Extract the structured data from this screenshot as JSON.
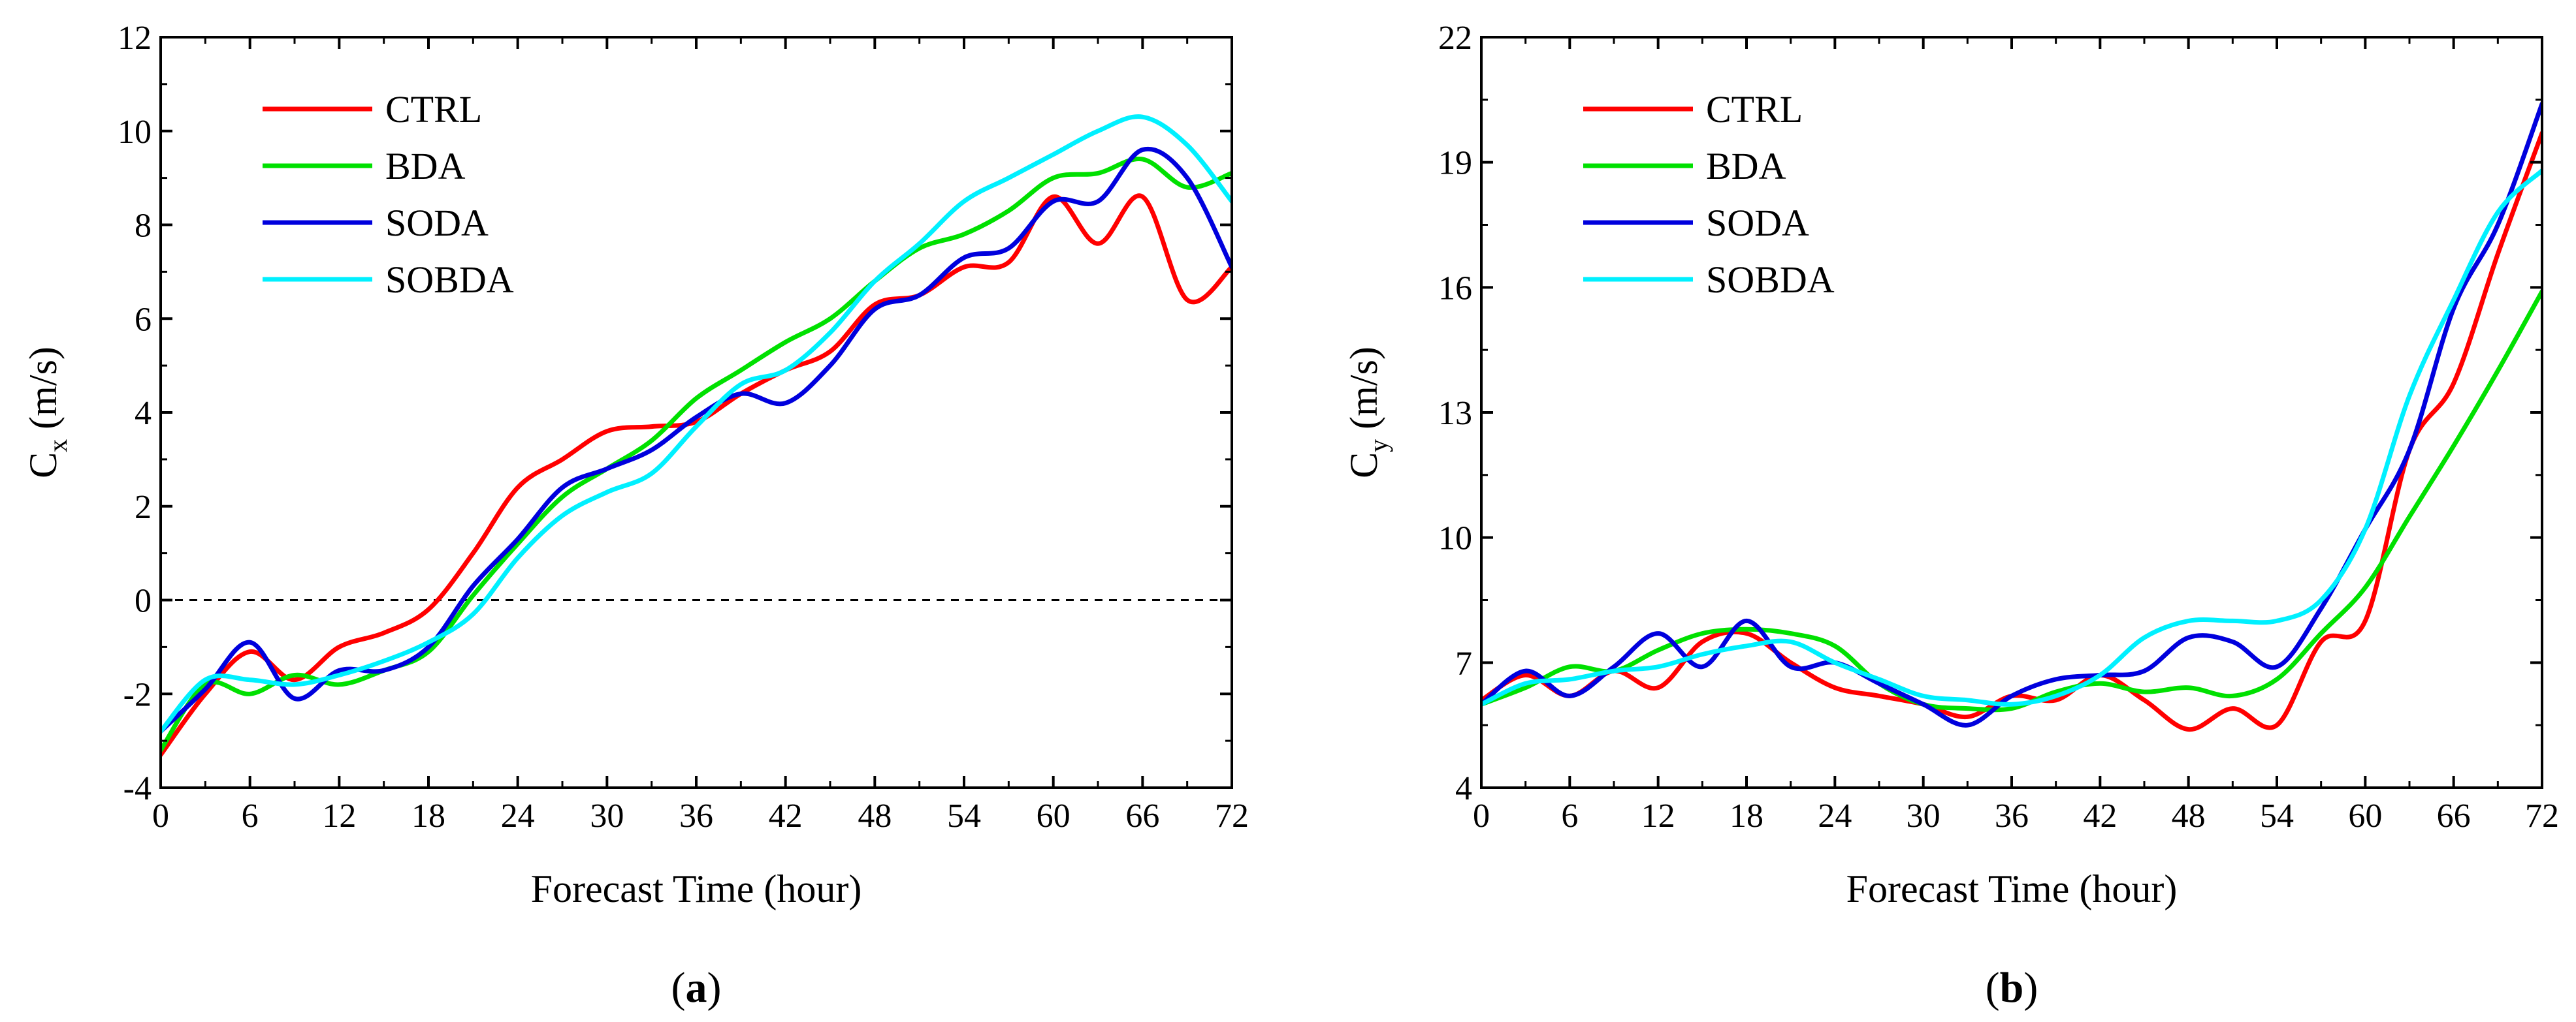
{
  "chart_data": [
    {
      "type": "line",
      "panel_label": "a",
      "xlabel": "Forecast Time (hour)",
      "ylabel_main": "C",
      "ylabel_sub": "x",
      "ylabel_unit": " (m/s)",
      "xlim": [
        0,
        72
      ],
      "ylim": [
        -4,
        12
      ],
      "x_ticks": [
        0,
        6,
        12,
        18,
        24,
        30,
        36,
        42,
        48,
        54,
        60,
        66,
        72
      ],
      "y_ticks": [
        -4,
        -2,
        0,
        2,
        4,
        6,
        8,
        10,
        12
      ],
      "reference_line": 0,
      "legend_position": "top-left",
      "grid": false,
      "series": [
        {
          "name": "CTRL",
          "color": "#ff0000",
          "x": [
            0,
            3,
            6,
            9,
            12,
            15,
            18,
            21,
            24,
            27,
            30,
            33,
            36,
            39,
            42,
            45,
            48,
            51,
            54,
            57,
            60,
            63,
            66,
            69,
            72
          ],
          "y": [
            -3.3,
            -2.0,
            -1.1,
            -1.7,
            -1.0,
            -0.7,
            -0.2,
            1.0,
            2.4,
            3.0,
            3.6,
            3.7,
            3.8,
            4.4,
            4.9,
            5.3,
            6.3,
            6.5,
            7.1,
            7.2,
            8.6,
            7.6,
            8.6,
            6.4,
            7.1
          ]
        },
        {
          "name": "BDA",
          "color": "#00e000",
          "x": [
            0,
            3,
            6,
            9,
            12,
            15,
            18,
            21,
            24,
            27,
            30,
            33,
            36,
            39,
            42,
            45,
            48,
            51,
            54,
            57,
            60,
            63,
            66,
            69,
            72
          ],
          "y": [
            -3.2,
            -1.8,
            -2.0,
            -1.6,
            -1.8,
            -1.5,
            -1.1,
            0.1,
            1.2,
            2.2,
            2.8,
            3.4,
            4.3,
            4.9,
            5.5,
            6.0,
            6.8,
            7.5,
            7.8,
            8.3,
            9.0,
            9.1,
            9.4,
            8.8,
            9.1
          ]
        },
        {
          "name": "SODA",
          "color": "#0000dd",
          "x": [
            0,
            3,
            6,
            9,
            12,
            15,
            18,
            21,
            24,
            27,
            30,
            33,
            36,
            39,
            42,
            45,
            48,
            51,
            54,
            57,
            60,
            63,
            66,
            69,
            72
          ],
          "y": [
            -2.8,
            -1.9,
            -0.9,
            -2.1,
            -1.5,
            -1.5,
            -1.0,
            0.3,
            1.3,
            2.4,
            2.8,
            3.2,
            3.9,
            4.4,
            4.2,
            5.0,
            6.2,
            6.5,
            7.3,
            7.5,
            8.5,
            8.5,
            9.6,
            9.0,
            7.1
          ]
        },
        {
          "name": "SOBDA",
          "color": "#00f0ff",
          "x": [
            0,
            3,
            6,
            9,
            12,
            15,
            18,
            21,
            24,
            27,
            30,
            33,
            36,
            39,
            42,
            45,
            48,
            51,
            54,
            57,
            60,
            63,
            66,
            69,
            72
          ],
          "y": [
            -2.8,
            -1.7,
            -1.7,
            -1.8,
            -1.6,
            -1.3,
            -0.9,
            -0.3,
            0.9,
            1.8,
            2.3,
            2.7,
            3.7,
            4.6,
            4.9,
            5.7,
            6.8,
            7.6,
            8.5,
            9.0,
            9.5,
            10.0,
            10.3,
            9.7,
            8.5
          ]
        }
      ]
    },
    {
      "type": "line",
      "panel_label": "b",
      "xlabel": "Forecast Time (hour)",
      "ylabel_main": "C",
      "ylabel_sub": "y",
      "ylabel_unit": " (m/s)",
      "xlim": [
        0,
        72
      ],
      "ylim": [
        4,
        22
      ],
      "x_ticks": [
        0,
        6,
        12,
        18,
        24,
        30,
        36,
        42,
        48,
        54,
        60,
        66,
        72
      ],
      "y_ticks": [
        4,
        7,
        10,
        13,
        16,
        19,
        22
      ],
      "legend_position": "top-left",
      "grid": false,
      "series": [
        {
          "name": "CTRL",
          "color": "#ff0000",
          "x": [
            0,
            3,
            6,
            9,
            12,
            15,
            18,
            21,
            24,
            27,
            30,
            33,
            36,
            39,
            42,
            45,
            48,
            51,
            54,
            57,
            60,
            63,
            66,
            69,
            72
          ],
          "y": [
            6.1,
            6.7,
            6.2,
            6.8,
            6.4,
            7.5,
            7.7,
            7.0,
            6.4,
            6.2,
            6.0,
            5.7,
            6.2,
            6.1,
            6.7,
            6.1,
            5.4,
            5.9,
            5.5,
            7.5,
            8.0,
            12.1,
            13.7,
            16.8,
            19.7
          ]
        },
        {
          "name": "BDA",
          "color": "#00e000",
          "x": [
            0,
            3,
            6,
            9,
            12,
            15,
            18,
            21,
            24,
            27,
            30,
            33,
            36,
            39,
            42,
            45,
            48,
            51,
            54,
            57,
            60,
            63,
            66,
            69,
            72
          ],
          "y": [
            6.0,
            6.4,
            6.9,
            6.8,
            7.3,
            7.7,
            7.8,
            7.7,
            7.4,
            6.5,
            6.0,
            5.9,
            5.9,
            6.3,
            6.5,
            6.3,
            6.4,
            6.2,
            6.6,
            7.7,
            8.8,
            10.5,
            12.2,
            14.0,
            15.9
          ]
        },
        {
          "name": "SODA",
          "color": "#0000dd",
          "x": [
            0,
            3,
            6,
            9,
            12,
            15,
            18,
            21,
            24,
            27,
            30,
            33,
            36,
            39,
            42,
            45,
            48,
            51,
            54,
            57,
            60,
            63,
            66,
            69,
            72
          ],
          "y": [
            6.0,
            6.8,
            6.2,
            6.9,
            7.7,
            6.9,
            8.0,
            6.9,
            7.0,
            6.5,
            6.0,
            5.5,
            6.2,
            6.6,
            6.7,
            6.8,
            7.6,
            7.5,
            6.9,
            8.3,
            10.2,
            12.1,
            15.5,
            17.5,
            20.4
          ]
        },
        {
          "name": "SOBDA",
          "color": "#00f0ff",
          "x": [
            0,
            3,
            6,
            9,
            12,
            15,
            18,
            21,
            24,
            27,
            30,
            33,
            36,
            39,
            42,
            45,
            48,
            51,
            54,
            57,
            60,
            63,
            66,
            69,
            72
          ],
          "y": [
            6.0,
            6.5,
            6.6,
            6.8,
            6.9,
            7.2,
            7.4,
            7.5,
            7.0,
            6.6,
            6.2,
            6.1,
            6.0,
            6.2,
            6.7,
            7.6,
            8.0,
            8.0,
            8.0,
            8.5,
            10.2,
            13.4,
            15.7,
            17.8,
            18.8
          ]
        }
      ]
    }
  ]
}
